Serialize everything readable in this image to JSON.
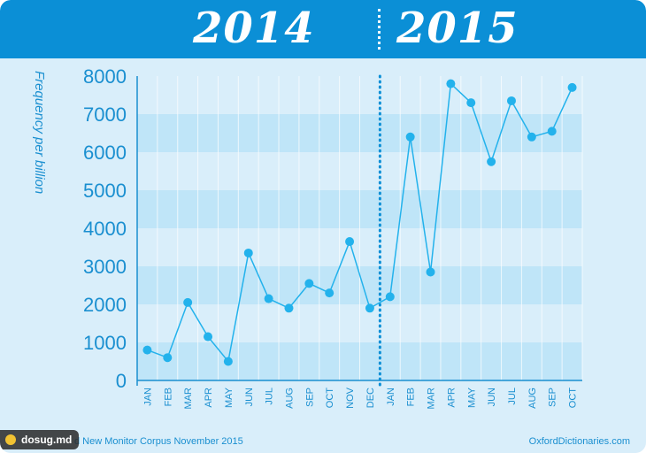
{
  "header": {
    "year_left": "2014",
    "year_right": "2015"
  },
  "footer": {
    "source": "d New Monitor Corpus November 2015",
    "site": "OxfordDictionaries.com"
  },
  "watermark": {
    "label": "dosug.md"
  },
  "colors": {
    "header": "#0b8fd6",
    "background": "#d9eefa",
    "band": "#bfe5f8",
    "line": "#23b2ec",
    "text": "#1a8fd0"
  },
  "chart_data": {
    "type": "line",
    "ylabel": "Frequency per billion",
    "ylim": [
      0,
      8000
    ],
    "yticks": [
      0,
      1000,
      2000,
      3000,
      4000,
      5000,
      6000,
      7000,
      8000
    ],
    "categories": [
      "JAN",
      "FEB",
      "MAR",
      "APR",
      "MAY",
      "JUN",
      "JUL",
      "AUG",
      "SEP",
      "OCT",
      "NOV",
      "DEC",
      "JAN",
      "FEB",
      "MAR",
      "APR",
      "MAY",
      "JUN",
      "JUL",
      "AUG",
      "SEP",
      "OCT"
    ],
    "series": [
      {
        "values": [
          800,
          600,
          2050,
          1150,
          500,
          3350,
          2150,
          1900,
          2550,
          2300,
          3650,
          1900,
          2200,
          6400,
          2850,
          7800,
          7300,
          5750,
          7350,
          6400,
          6550,
          7700
        ]
      }
    ],
    "divider_between": [
      11,
      12
    ],
    "grid": true
  }
}
